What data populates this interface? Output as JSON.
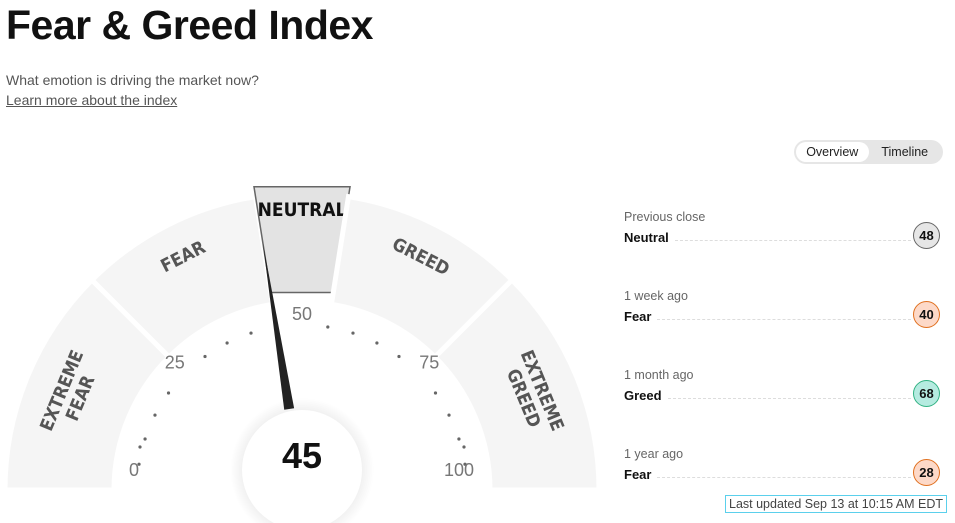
{
  "header": {
    "title": "Fear & Greed Index",
    "subtitle": "What emotion is driving the market now?",
    "learn_more": "Learn more about the index"
  },
  "toggle": {
    "options": [
      "Overview",
      "Timeline"
    ],
    "selected": "Overview"
  },
  "gauge": {
    "value": 45,
    "value_label": "45",
    "segments": [
      {
        "label": [
          "EXTREME",
          "FEAR"
        ],
        "from": 0,
        "to": 25
      },
      {
        "label": [
          "FEAR"
        ],
        "from": 25,
        "to": 45
      },
      {
        "label": [
          "NEUTRAL"
        ],
        "from": 45,
        "to": 55,
        "active": true
      },
      {
        "label": [
          "GREED"
        ],
        "from": 55,
        "to": 75
      },
      {
        "label": [
          "EXTREME",
          "GREED"
        ],
        "from": 75,
        "to": 100
      }
    ],
    "scale_labels": [
      "0",
      "25",
      "50",
      "75",
      "100"
    ],
    "colors": {
      "segment": "#f5f5f5",
      "active": "#e3e3e3",
      "needle": "#222"
    }
  },
  "history": [
    {
      "period": "Previous close",
      "rating": "Neutral",
      "value": "48",
      "color": "#e6e6e6",
      "border": "#666"
    },
    {
      "period": "1 week ago",
      "rating": "Fear",
      "value": "40",
      "color": "#fdd9c8",
      "border": "#e0701f"
    },
    {
      "period": "1 month ago",
      "rating": "Greed",
      "value": "68",
      "color": "#b5ebe0",
      "border": "#32b283"
    },
    {
      "period": "1 year ago",
      "rating": "Fear",
      "value": "28",
      "color": "#fdd9c8",
      "border": "#e0701f"
    }
  ],
  "last_updated": "Last updated Sep 13 at 10:15 AM EDT"
}
